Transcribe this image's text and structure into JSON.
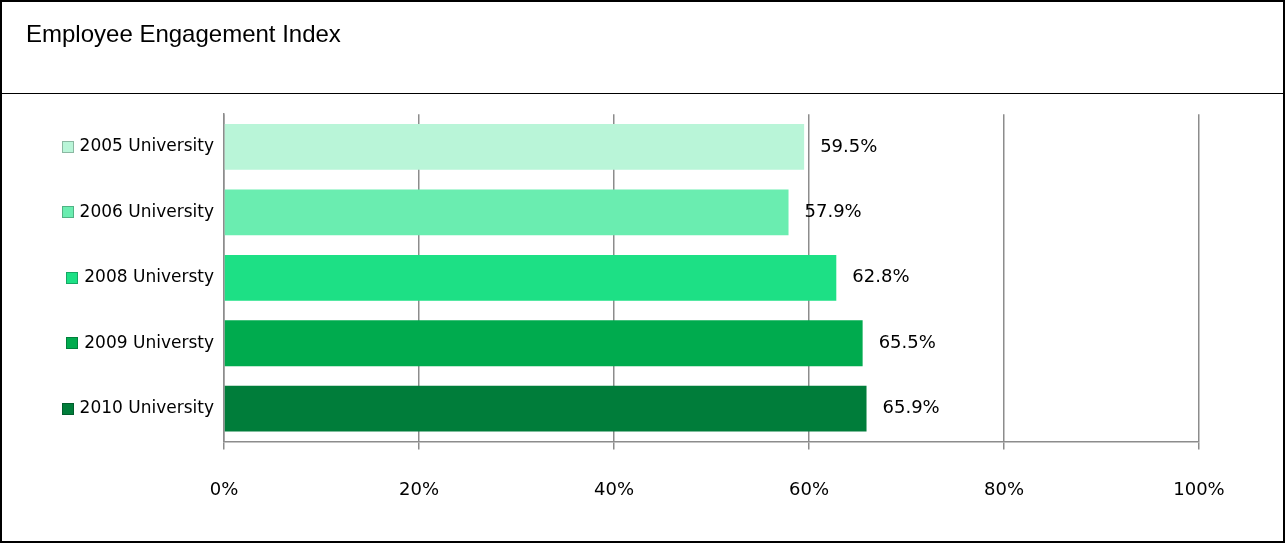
{
  "chart_data": {
    "type": "bar",
    "orientation": "horizontal",
    "title": "Employee Engagement Index",
    "categories": [
      "2005 University",
      "2006 University",
      "2008 Universty",
      "2009 Universty",
      "2010 University"
    ],
    "values": [
      59.5,
      57.9,
      62.8,
      65.5,
      65.9
    ],
    "value_labels": [
      "59.5%",
      "57.9%",
      "62.8%",
      "65.5%",
      "65.9%"
    ],
    "colors": [
      "#b9f5d8",
      "#6aedb0",
      "#1de085",
      "#00ab4e",
      "#007d3a"
    ],
    "xlim": [
      0,
      100
    ],
    "xticks": [
      {
        "value": 0,
        "label": "0%"
      },
      {
        "value": 20,
        "label": "20%"
      },
      {
        "value": 40,
        "label": "40%"
      },
      {
        "value": 60,
        "label": "60%"
      },
      {
        "value": 80,
        "label": "80%"
      },
      {
        "value": 100,
        "label": "100%"
      }
    ],
    "grid": "x"
  }
}
